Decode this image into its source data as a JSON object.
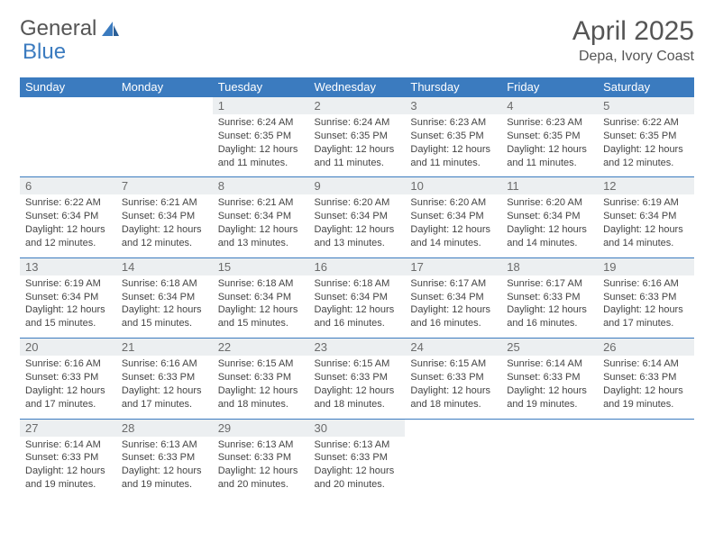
{
  "brand": {
    "part1": "General",
    "part2": "Blue"
  },
  "title": "April 2025",
  "location": "Depa, Ivory Coast",
  "colors": {
    "header_bg": "#3b7bbf",
    "header_fg": "#ffffff",
    "num_bg": "#eceff1",
    "num_fg": "#6b6b6b",
    "text": "#444444",
    "rule": "#3b7bbf"
  },
  "days": [
    "Sunday",
    "Monday",
    "Tuesday",
    "Wednesday",
    "Thursday",
    "Friday",
    "Saturday"
  ],
  "weeks": [
    [
      null,
      null,
      {
        "n": "1",
        "sr": "6:24 AM",
        "ss": "6:35 PM",
        "dl": "12 hours and 11 minutes."
      },
      {
        "n": "2",
        "sr": "6:24 AM",
        "ss": "6:35 PM",
        "dl": "12 hours and 11 minutes."
      },
      {
        "n": "3",
        "sr": "6:23 AM",
        "ss": "6:35 PM",
        "dl": "12 hours and 11 minutes."
      },
      {
        "n": "4",
        "sr": "6:23 AM",
        "ss": "6:35 PM",
        "dl": "12 hours and 11 minutes."
      },
      {
        "n": "5",
        "sr": "6:22 AM",
        "ss": "6:35 PM",
        "dl": "12 hours and 12 minutes."
      }
    ],
    [
      {
        "n": "6",
        "sr": "6:22 AM",
        "ss": "6:34 PM",
        "dl": "12 hours and 12 minutes."
      },
      {
        "n": "7",
        "sr": "6:21 AM",
        "ss": "6:34 PM",
        "dl": "12 hours and 12 minutes."
      },
      {
        "n": "8",
        "sr": "6:21 AM",
        "ss": "6:34 PM",
        "dl": "12 hours and 13 minutes."
      },
      {
        "n": "9",
        "sr": "6:20 AM",
        "ss": "6:34 PM",
        "dl": "12 hours and 13 minutes."
      },
      {
        "n": "10",
        "sr": "6:20 AM",
        "ss": "6:34 PM",
        "dl": "12 hours and 14 minutes."
      },
      {
        "n": "11",
        "sr": "6:20 AM",
        "ss": "6:34 PM",
        "dl": "12 hours and 14 minutes."
      },
      {
        "n": "12",
        "sr": "6:19 AM",
        "ss": "6:34 PM",
        "dl": "12 hours and 14 minutes."
      }
    ],
    [
      {
        "n": "13",
        "sr": "6:19 AM",
        "ss": "6:34 PM",
        "dl": "12 hours and 15 minutes."
      },
      {
        "n": "14",
        "sr": "6:18 AM",
        "ss": "6:34 PM",
        "dl": "12 hours and 15 minutes."
      },
      {
        "n": "15",
        "sr": "6:18 AM",
        "ss": "6:34 PM",
        "dl": "12 hours and 15 minutes."
      },
      {
        "n": "16",
        "sr": "6:18 AM",
        "ss": "6:34 PM",
        "dl": "12 hours and 16 minutes."
      },
      {
        "n": "17",
        "sr": "6:17 AM",
        "ss": "6:34 PM",
        "dl": "12 hours and 16 minutes."
      },
      {
        "n": "18",
        "sr": "6:17 AM",
        "ss": "6:33 PM",
        "dl": "12 hours and 16 minutes."
      },
      {
        "n": "19",
        "sr": "6:16 AM",
        "ss": "6:33 PM",
        "dl": "12 hours and 17 minutes."
      }
    ],
    [
      {
        "n": "20",
        "sr": "6:16 AM",
        "ss": "6:33 PM",
        "dl": "12 hours and 17 minutes."
      },
      {
        "n": "21",
        "sr": "6:16 AM",
        "ss": "6:33 PM",
        "dl": "12 hours and 17 minutes."
      },
      {
        "n": "22",
        "sr": "6:15 AM",
        "ss": "6:33 PM",
        "dl": "12 hours and 18 minutes."
      },
      {
        "n": "23",
        "sr": "6:15 AM",
        "ss": "6:33 PM",
        "dl": "12 hours and 18 minutes."
      },
      {
        "n": "24",
        "sr": "6:15 AM",
        "ss": "6:33 PM",
        "dl": "12 hours and 18 minutes."
      },
      {
        "n": "25",
        "sr": "6:14 AM",
        "ss": "6:33 PM",
        "dl": "12 hours and 19 minutes."
      },
      {
        "n": "26",
        "sr": "6:14 AM",
        "ss": "6:33 PM",
        "dl": "12 hours and 19 minutes."
      }
    ],
    [
      {
        "n": "27",
        "sr": "6:14 AM",
        "ss": "6:33 PM",
        "dl": "12 hours and 19 minutes."
      },
      {
        "n": "28",
        "sr": "6:13 AM",
        "ss": "6:33 PM",
        "dl": "12 hours and 19 minutes."
      },
      {
        "n": "29",
        "sr": "6:13 AM",
        "ss": "6:33 PM",
        "dl": "12 hours and 20 minutes."
      },
      {
        "n": "30",
        "sr": "6:13 AM",
        "ss": "6:33 PM",
        "dl": "12 hours and 20 minutes."
      },
      null,
      null,
      null
    ]
  ],
  "labels": {
    "sunrise": "Sunrise:",
    "sunset": "Sunset:",
    "daylight": "Daylight:"
  }
}
